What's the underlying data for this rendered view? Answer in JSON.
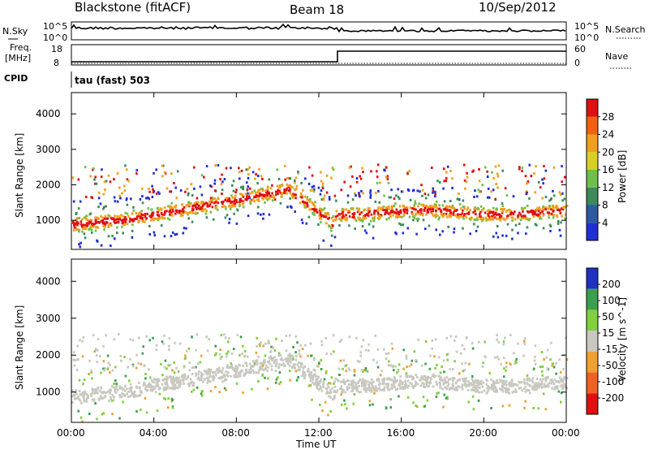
{
  "header": {
    "station": "Blackstone (fitACF)",
    "beam": "Beam 18",
    "date": "10/Sep/2012"
  },
  "top_panel": {
    "left_label": "N.Sky",
    "right_label": "N.Search",
    "left_ticks": [
      "10^5",
      "10^0"
    ],
    "right_ticks": [
      "10^5",
      "10^0"
    ]
  },
  "freq_panel": {
    "left_label_line1": "Freq.",
    "left_label_line2": "[MHz]",
    "right_label": "Nave",
    "left_ticks": [
      "18",
      "8"
    ],
    "right_ticks": [
      "60",
      "0"
    ]
  },
  "cpid": {
    "label": "CPID",
    "value": "tau (fast) 503"
  },
  "colors": {
    "power": [
      "#1f2fd6",
      "#2c5aa0",
      "#3c8a5a",
      "#6ec04a",
      "#d8d020",
      "#f0a020",
      "#f06010",
      "#e01010"
    ],
    "velocity": [
      "#2030c0",
      "#3aa050",
      "#80d040",
      "#c8c8c0",
      "#f0a030",
      "#f06020",
      "#e01010"
    ]
  },
  "chart_data": [
    {
      "type": "heatmap",
      "title": "",
      "xlabel": "",
      "ylabel": "Slant Range [km]",
      "x_ticks": [
        "00:00",
        "04:00",
        "08:00",
        "12:00",
        "16:00",
        "20:00",
        "00:00"
      ],
      "y_ticks": [
        1000,
        2000,
        3000,
        4000
      ],
      "ylim": [
        180,
        4600
      ],
      "colorbar": {
        "label": "Power [dB]",
        "ticks": [
          4,
          8,
          12,
          16,
          20,
          24,
          28
        ],
        "range": [
          0,
          32
        ]
      }
    },
    {
      "type": "heatmap",
      "title": "",
      "xlabel": "Time UT",
      "ylabel": "Slant Range [km]",
      "x_ticks": [
        "00:00",
        "04:00",
        "08:00",
        "12:00",
        "16:00",
        "20:00",
        "00:00"
      ],
      "y_ticks": [
        1000,
        2000,
        3000,
        4000
      ],
      "ylim": [
        180,
        4600
      ],
      "colorbar": {
        "label": "Velocity [m s^-1]",
        "ticks": [
          "200",
          "100",
          "50",
          "15",
          "-15",
          "-50",
          "-100",
          "-200"
        ]
      }
    }
  ]
}
